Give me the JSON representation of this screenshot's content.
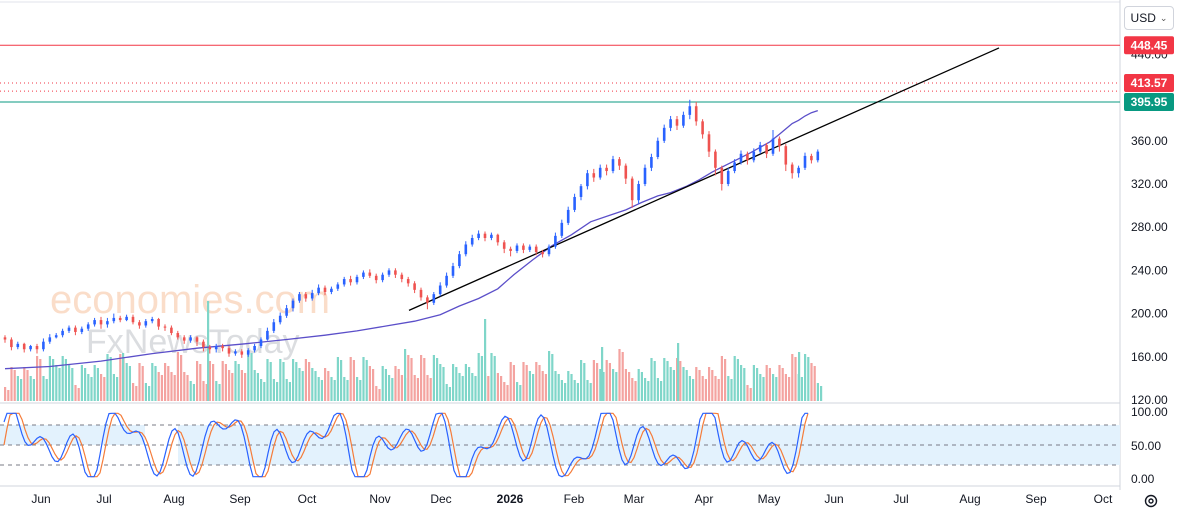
{
  "currency": {
    "label": "USD"
  },
  "icons": {
    "currency_chevron": "chevron-down-icon",
    "settings": "gear-icon"
  },
  "watermark": {
    "line1": "economies.com",
    "line2": "FxNewsToday"
  },
  "colors": {
    "up": "#2962ff",
    "down": "#ef5350",
    "resistance": "#f23645",
    "support": "#089981",
    "ma": "#5b4fc9",
    "trend": "#000000",
    "stoch_k": "#2962ff",
    "stoch_d": "#f57c3a",
    "vol_up": "#7fd6c9",
    "vol_down": "#f4a3a0"
  },
  "chart_data": {
    "type": "candlestick",
    "price_axis": {
      "min": 120,
      "max": 460,
      "ticks": [
        "120.00",
        "160.00",
        "200.00",
        "240.00",
        "280.00",
        "320.00",
        "360.00",
        "400.00",
        "440.00"
      ]
    },
    "x_axis": {
      "ticks": [
        "Jun",
        "Jul",
        "Aug",
        "Sep",
        "Oct",
        "Nov",
        "Dec",
        "2026",
        "Feb",
        "Mar",
        "Apr",
        "May",
        "Jun",
        "Jul",
        "Aug",
        "Sep",
        "Oct"
      ]
    },
    "levels": [
      {
        "label": "448.45",
        "value": 448.45,
        "style": "solid",
        "color": "#f23645"
      },
      {
        "label": "413.57",
        "value": 413.57,
        "style": "dotted",
        "color": "#f23645"
      },
      {
        "value": 406,
        "style": "dotted",
        "color": "#f23645"
      },
      {
        "label": "395.95",
        "value": 395.95,
        "style": "solid",
        "color": "#089981"
      }
    ],
    "trendline": {
      "start": {
        "date": "Nov",
        "price": 203
      },
      "end": {
        "date": "Aug",
        "price": 446
      }
    },
    "ma_path": [
      [
        0,
        149
      ],
      [
        14,
        151
      ],
      [
        30,
        156
      ],
      [
        46,
        163
      ],
      [
        60,
        168
      ],
      [
        75,
        172
      ],
      [
        88,
        176
      ],
      [
        100,
        180
      ],
      [
        110,
        184
      ],
      [
        120,
        189
      ],
      [
        128,
        193
      ],
      [
        136,
        199
      ],
      [
        142,
        207
      ],
      [
        148,
        214
      ],
      [
        154,
        223
      ],
      [
        159,
        236
      ],
      [
        165,
        250
      ],
      [
        171,
        263
      ],
      [
        177,
        273
      ],
      [
        183,
        285
      ],
      [
        189,
        291
      ],
      [
        194,
        296
      ],
      [
        199,
        303
      ],
      [
        204,
        309
      ],
      [
        208,
        312
      ],
      [
        213,
        318
      ],
      [
        217,
        324
      ],
      [
        221,
        331
      ],
      [
        225,
        337
      ],
      [
        229,
        343
      ],
      [
        233,
        349
      ],
      [
        236,
        354
      ],
      [
        239,
        359
      ],
      [
        242,
        366
      ],
      [
        244,
        371
      ],
      [
        246,
        376
      ],
      [
        248,
        379
      ],
      [
        250,
        383
      ],
      [
        252,
        386
      ],
      [
        254,
        388
      ]
    ],
    "candles": [
      [
        0,
        178,
        176,
        180,
        173
      ],
      [
        2,
        176,
        169,
        178,
        166
      ],
      [
        4,
        169,
        172,
        174,
        167
      ],
      [
        6,
        172,
        167,
        173,
        164
      ],
      [
        8,
        167,
        170,
        171,
        165
      ],
      [
        10,
        170,
        167,
        172,
        163
      ],
      [
        12,
        167,
        174,
        177,
        165
      ],
      [
        14,
        174,
        178,
        181,
        172
      ],
      [
        16,
        178,
        180,
        182,
        177
      ],
      [
        18,
        180,
        184,
        186,
        178
      ],
      [
        20,
        184,
        187,
        189,
        182
      ],
      [
        22,
        187,
        183,
        189,
        180
      ],
      [
        24,
        183,
        186,
        188,
        181
      ],
      [
        26,
        186,
        190,
        192,
        184
      ],
      [
        28,
        190,
        194,
        196,
        188
      ],
      [
        30,
        194,
        190,
        197,
        186
      ],
      [
        32,
        190,
        193,
        196,
        187
      ],
      [
        34,
        193,
        196,
        200,
        191
      ],
      [
        36,
        196,
        194,
        198,
        192
      ],
      [
        38,
        194,
        197,
        199,
        193
      ],
      [
        40,
        197,
        192,
        199,
        190
      ],
      [
        42,
        192,
        189,
        194,
        186
      ],
      [
        44,
        189,
        193,
        195,
        187
      ],
      [
        46,
        193,
        195,
        197,
        191
      ],
      [
        48,
        195,
        188,
        196,
        185
      ],
      [
        50,
        188,
        187,
        190,
        184
      ],
      [
        52,
        187,
        182,
        189,
        180
      ],
      [
        54,
        182,
        178,
        184,
        176
      ],
      [
        56,
        178,
        175,
        180,
        172
      ],
      [
        58,
        175,
        178,
        180,
        173
      ],
      [
        60,
        178,
        174,
        179,
        170
      ],
      [
        62,
        174,
        169,
        176,
        165
      ],
      [
        64,
        169,
        167,
        171,
        163
      ],
      [
        66,
        167,
        170,
        172,
        164
      ],
      [
        68,
        170,
        168,
        172,
        165
      ],
      [
        70,
        168,
        163,
        170,
        160
      ],
      [
        72,
        163,
        165,
        167,
        161
      ],
      [
        74,
        165,
        162,
        167,
        159
      ],
      [
        76,
        162,
        166,
        168,
        160
      ],
      [
        78,
        166,
        170,
        172,
        164
      ],
      [
        80,
        170,
        176,
        178,
        168
      ],
      [
        82,
        176,
        184,
        187,
        175
      ],
      [
        84,
        184,
        192,
        195,
        182
      ],
      [
        86,
        192,
        198,
        201,
        190
      ],
      [
        88,
        198,
        205,
        208,
        196
      ],
      [
        90,
        205,
        212,
        214,
        202
      ],
      [
        92,
        212,
        218,
        220,
        210
      ],
      [
        94,
        218,
        214,
        220,
        211
      ],
      [
        96,
        214,
        219,
        222,
        212
      ],
      [
        98,
        219,
        224,
        227,
        217
      ],
      [
        100,
        224,
        220,
        226,
        217
      ],
      [
        102,
        220,
        223,
        225,
        218
      ],
      [
        104,
        223,
        227,
        229,
        221
      ],
      [
        106,
        227,
        232,
        234,
        225
      ],
      [
        108,
        232,
        229,
        235,
        226
      ],
      [
        110,
        229,
        234,
        236,
        227
      ],
      [
        112,
        234,
        238,
        240,
        232
      ],
      [
        114,
        238,
        235,
        241,
        233
      ],
      [
        116,
        235,
        231,
        237,
        228
      ],
      [
        118,
        231,
        236,
        238,
        229
      ],
      [
        120,
        236,
        240,
        242,
        234
      ],
      [
        122,
        240,
        236,
        242,
        233
      ],
      [
        124,
        236,
        232,
        238,
        229
      ],
      [
        126,
        232,
        228,
        234,
        225
      ],
      [
        128,
        228,
        222,
        230,
        219
      ],
      [
        130,
        222,
        215,
        224,
        212
      ],
      [
        132,
        215,
        210,
        217,
        204
      ],
      [
        134,
        210,
        218,
        220,
        208
      ],
      [
        136,
        218,
        226,
        229,
        216
      ],
      [
        138,
        226,
        235,
        238,
        224
      ],
      [
        140,
        235,
        244,
        247,
        233
      ],
      [
        142,
        244,
        255,
        258,
        242
      ],
      [
        144,
        255,
        264,
        267,
        253
      ],
      [
        146,
        264,
        270,
        273,
        262
      ],
      [
        148,
        270,
        274,
        277,
        268
      ],
      [
        150,
        274,
        270,
        276,
        267
      ],
      [
        152,
        270,
        273,
        275,
        268
      ],
      [
        154,
        273,
        266,
        274,
        263
      ],
      [
        156,
        266,
        260,
        268,
        256
      ],
      [
        158,
        260,
        258,
        262,
        253
      ],
      [
        160,
        258,
        263,
        265,
        256
      ],
      [
        162,
        263,
        259,
        265,
        256
      ],
      [
        164,
        259,
        262,
        264,
        257
      ],
      [
        166,
        262,
        257,
        264,
        254
      ],
      [
        168,
        257,
        255,
        259,
        252
      ],
      [
        170,
        255,
        262,
        264,
        253
      ],
      [
        172,
        262,
        272,
        275,
        260
      ],
      [
        174,
        272,
        284,
        287,
        270
      ],
      [
        176,
        284,
        296,
        299,
        282
      ],
      [
        178,
        296,
        308,
        311,
        294
      ],
      [
        180,
        308,
        318,
        320,
        305
      ],
      [
        182,
        318,
        330,
        333,
        315
      ],
      [
        184,
        330,
        326,
        334,
        322
      ],
      [
        186,
        326,
        335,
        338,
        324
      ],
      [
        188,
        335,
        332,
        338,
        328
      ],
      [
        190,
        332,
        343,
        346,
        330
      ],
      [
        192,
        343,
        337,
        345,
        333
      ],
      [
        194,
        337,
        325,
        339,
        320
      ],
      [
        196,
        325,
        305,
        327,
        298
      ],
      [
        198,
        305,
        320,
        323,
        302
      ],
      [
        200,
        320,
        335,
        338,
        318
      ],
      [
        202,
        335,
        345,
        348,
        332
      ],
      [
        204,
        345,
        360,
        363,
        343
      ],
      [
        206,
        360,
        372,
        375,
        358
      ],
      [
        208,
        372,
        380,
        383,
        369
      ],
      [
        210,
        380,
        374,
        383,
        370
      ],
      [
        212,
        374,
        384,
        387,
        372
      ],
      [
        214,
        384,
        392,
        398,
        380
      ],
      [
        216,
        392,
        378,
        396,
        374
      ],
      [
        218,
        378,
        366,
        380,
        362
      ],
      [
        220,
        366,
        350,
        369,
        345
      ],
      [
        222,
        350,
        335,
        352,
        328
      ],
      [
        224,
        335,
        320,
        337,
        314
      ],
      [
        226,
        320,
        332,
        335,
        318
      ],
      [
        228,
        332,
        340,
        343,
        330
      ],
      [
        230,
        340,
        348,
        351,
        338
      ],
      [
        232,
        348,
        342,
        350,
        338
      ],
      [
        234,
        342,
        350,
        353,
        340
      ],
      [
        236,
        350,
        356,
        359,
        348
      ],
      [
        238,
        356,
        348,
        358,
        344
      ],
      [
        240,
        348,
        362,
        370,
        346
      ],
      [
        242,
        362,
        355,
        364,
        350
      ],
      [
        244,
        355,
        338,
        357,
        332
      ],
      [
        246,
        338,
        330,
        340,
        325
      ],
      [
        248,
        330,
        335,
        337,
        326
      ],
      [
        250,
        335,
        346,
        349,
        333
      ],
      [
        252,
        346,
        342,
        348,
        339
      ],
      [
        254,
        342,
        350,
        352,
        340
      ]
    ]
  }
}
